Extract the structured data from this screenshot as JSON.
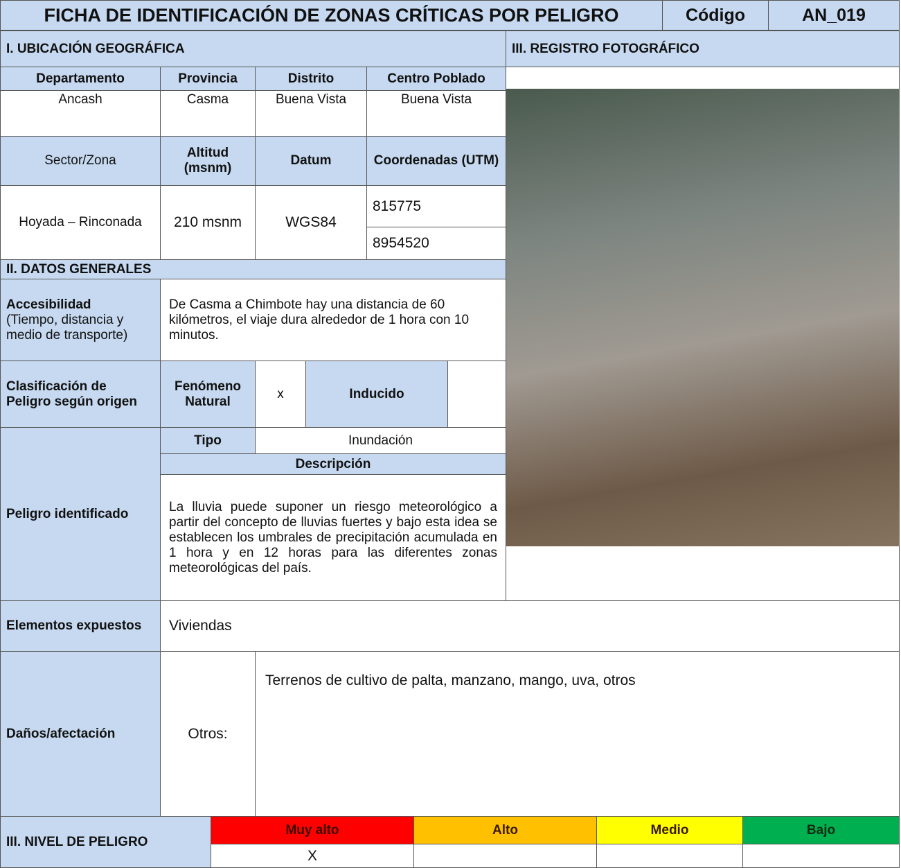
{
  "header": {
    "title": "FICHA DE IDENTIFICACIÓN DE ZONAS CRÍTICAS POR PELIGRO",
    "code_label": "Código",
    "code": "AN_019"
  },
  "ubicacion": {
    "title": "I. UBICACIÓN GEOGRÁFICA",
    "headers": [
      "Departamento",
      "Provincia",
      "Distrito",
      "Centro Poblado"
    ],
    "values": [
      "Ancash",
      "Casma",
      "Buena Vista",
      "Buena Vista"
    ],
    "headers2": [
      "Sector/Zona",
      "Altitud (msnm)",
      "Datum",
      "Coordenadas (UTM)"
    ],
    "sector": "Hoyada – Rinconada",
    "altitud": "210 msnm",
    "datum": "WGS84",
    "coordenadas": [
      "815775",
      "8954520"
    ]
  },
  "foto": {
    "title": "III. REGISTRO FOTOGRÁFICO"
  },
  "datos": {
    "title": "II. DATOS GENERALES",
    "accesibilidad_label": "Accesibilidad",
    "accesibilidad_sub": "(Tiempo, distancia y medio de transporte)",
    "accesibilidad": "De Casma a Chimbote hay una distancia de 60 kilómetros, el viaje dura alrededor de 1 hora con 10 minutos.",
    "clasificacion_label": "Clasificación de Peligro según origen",
    "natural_label": "Fenómeno Natural",
    "natural_mark": "x",
    "inducido_label": "Inducido",
    "peligro_label": "Peligro identificado",
    "tipo_label": "Tipo",
    "tipo": "Inundación",
    "descripcion_label": "Descripción",
    "descripcion": "La lluvia puede suponer un riesgo meteorológico a partir del concepto de lluvias fuertes y bajo esta idea se establecen los umbrales de precipitación acumulada en 1 hora y en 12 horas para las diferentes zonas meteorológicas del país.",
    "elementos_label": "Elementos expuestos",
    "elementos": "Viviendas",
    "danos_label": "Daños/afectación",
    "otros_label": "Otros:",
    "otros": "Terrenos de cultivo de palta, manzano, mango, uva, otros"
  },
  "nivel": {
    "title": "III. NIVEL DE PELIGRO",
    "levels": [
      {
        "label": "Muy alto",
        "mark": "X"
      },
      {
        "label": "Alto"
      },
      {
        "label": "Medio"
      },
      {
        "label": "Bajo"
      }
    ]
  }
}
